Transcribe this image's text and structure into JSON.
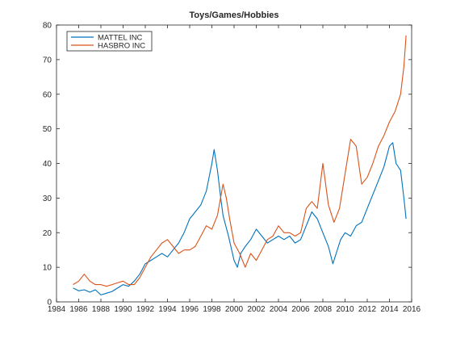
{
  "chart_data": {
    "type": "line",
    "title": "Toys/Games/Hobbies",
    "xlabel": "",
    "ylabel": "",
    "xlim": [
      1984,
      2016
    ],
    "ylim": [
      0,
      80
    ],
    "xticks": [
      "1984",
      "1986",
      "1988",
      "1990",
      "1992",
      "1994",
      "1996",
      "1998",
      "2000",
      "2002",
      "2004",
      "2006",
      "2008",
      "2010",
      "2012",
      "2014",
      "2016"
    ],
    "yticks": [
      "0",
      "10",
      "20",
      "30",
      "40",
      "50",
      "60",
      "70",
      "80"
    ],
    "grid": false,
    "legend_position": "top-left",
    "series": [
      {
        "name": "MATTEL INC",
        "color": "#0072bd",
        "x": [
          1985.5,
          1986.0,
          1986.5,
          1987.0,
          1987.5,
          1988.0,
          1988.5,
          1989.0,
          1989.5,
          1990.0,
          1990.5,
          1991.0,
          1991.5,
          1992.0,
          1992.5,
          1993.0,
          1993.5,
          1994.0,
          1994.5,
          1995.0,
          1995.5,
          1996.0,
          1996.5,
          1997.0,
          1997.5,
          1998.0,
          1998.2,
          1998.5,
          1998.8,
          1999.0,
          1999.5,
          2000.0,
          2000.3,
          2000.6,
          2001.0,
          2001.5,
          2002.0,
          2002.5,
          2003.0,
          2003.5,
          2004.0,
          2004.5,
          2005.0,
          2005.5,
          2006.0,
          2006.5,
          2007.0,
          2007.5,
          2008.0,
          2008.5,
          2008.9,
          2009.2,
          2009.6,
          2010.0,
          2010.5,
          2011.0,
          2011.5,
          2012.0,
          2012.5,
          2013.0,
          2013.5,
          2014.0,
          2014.3,
          2014.6,
          2015.0,
          2015.3,
          2015.5
        ],
        "values": [
          4,
          3.2,
          3.5,
          2.8,
          3.5,
          2,
          2.5,
          3,
          4,
          5,
          4.5,
          6,
          8,
          11,
          12,
          13,
          14,
          13,
          15,
          17,
          20,
          24,
          26,
          28,
          32,
          40,
          44,
          38,
          30,
          25,
          19,
          12,
          10,
          14,
          16,
          18,
          21,
          19,
          17,
          18,
          19,
          18,
          19,
          17,
          18,
          22,
          26,
          24,
          20,
          16,
          11,
          14,
          18,
          20,
          19,
          22,
          23,
          27,
          31,
          35,
          39,
          45,
          46,
          40,
          38,
          30,
          24
        ]
      },
      {
        "name": "HASBRO INC",
        "color": "#d95319",
        "x": [
          1985.5,
          1986.0,
          1986.5,
          1987.0,
          1987.5,
          1988.0,
          1988.5,
          1989.0,
          1989.5,
          1990.0,
          1990.5,
          1991.0,
          1991.5,
          1992.0,
          1992.5,
          1993.0,
          1993.5,
          1994.0,
          1994.5,
          1995.0,
          1995.5,
          1996.0,
          1996.5,
          1997.0,
          1997.5,
          1998.0,
          1998.5,
          1999.0,
          1999.3,
          1999.6,
          2000.0,
          2000.5,
          2001.0,
          2001.5,
          2002.0,
          2002.5,
          2003.0,
          2003.5,
          2004.0,
          2004.5,
          2005.0,
          2005.5,
          2006.0,
          2006.5,
          2007.0,
          2007.5,
          2008.0,
          2008.5,
          2009.0,
          2009.5,
          2010.0,
          2010.5,
          2011.0,
          2011.5,
          2012.0,
          2012.5,
          2013.0,
          2013.5,
          2014.0,
          2014.5,
          2015.0,
          2015.3,
          2015.5
        ],
        "values": [
          5,
          6,
          8,
          6,
          5,
          5,
          4.5,
          5,
          5.5,
          6,
          5,
          5,
          7,
          10,
          13,
          15,
          17,
          18,
          16,
          14,
          15,
          15,
          16,
          19,
          22,
          21,
          25,
          34,
          30,
          24,
          17,
          14,
          10,
          14,
          12,
          15,
          18,
          19,
          22,
          20,
          20,
          19,
          20,
          27,
          29,
          27,
          40,
          28,
          23,
          27,
          37,
          47,
          45,
          34,
          36,
          40,
          45,
          48,
          52,
          55,
          60,
          68,
          77
        ]
      }
    ]
  }
}
